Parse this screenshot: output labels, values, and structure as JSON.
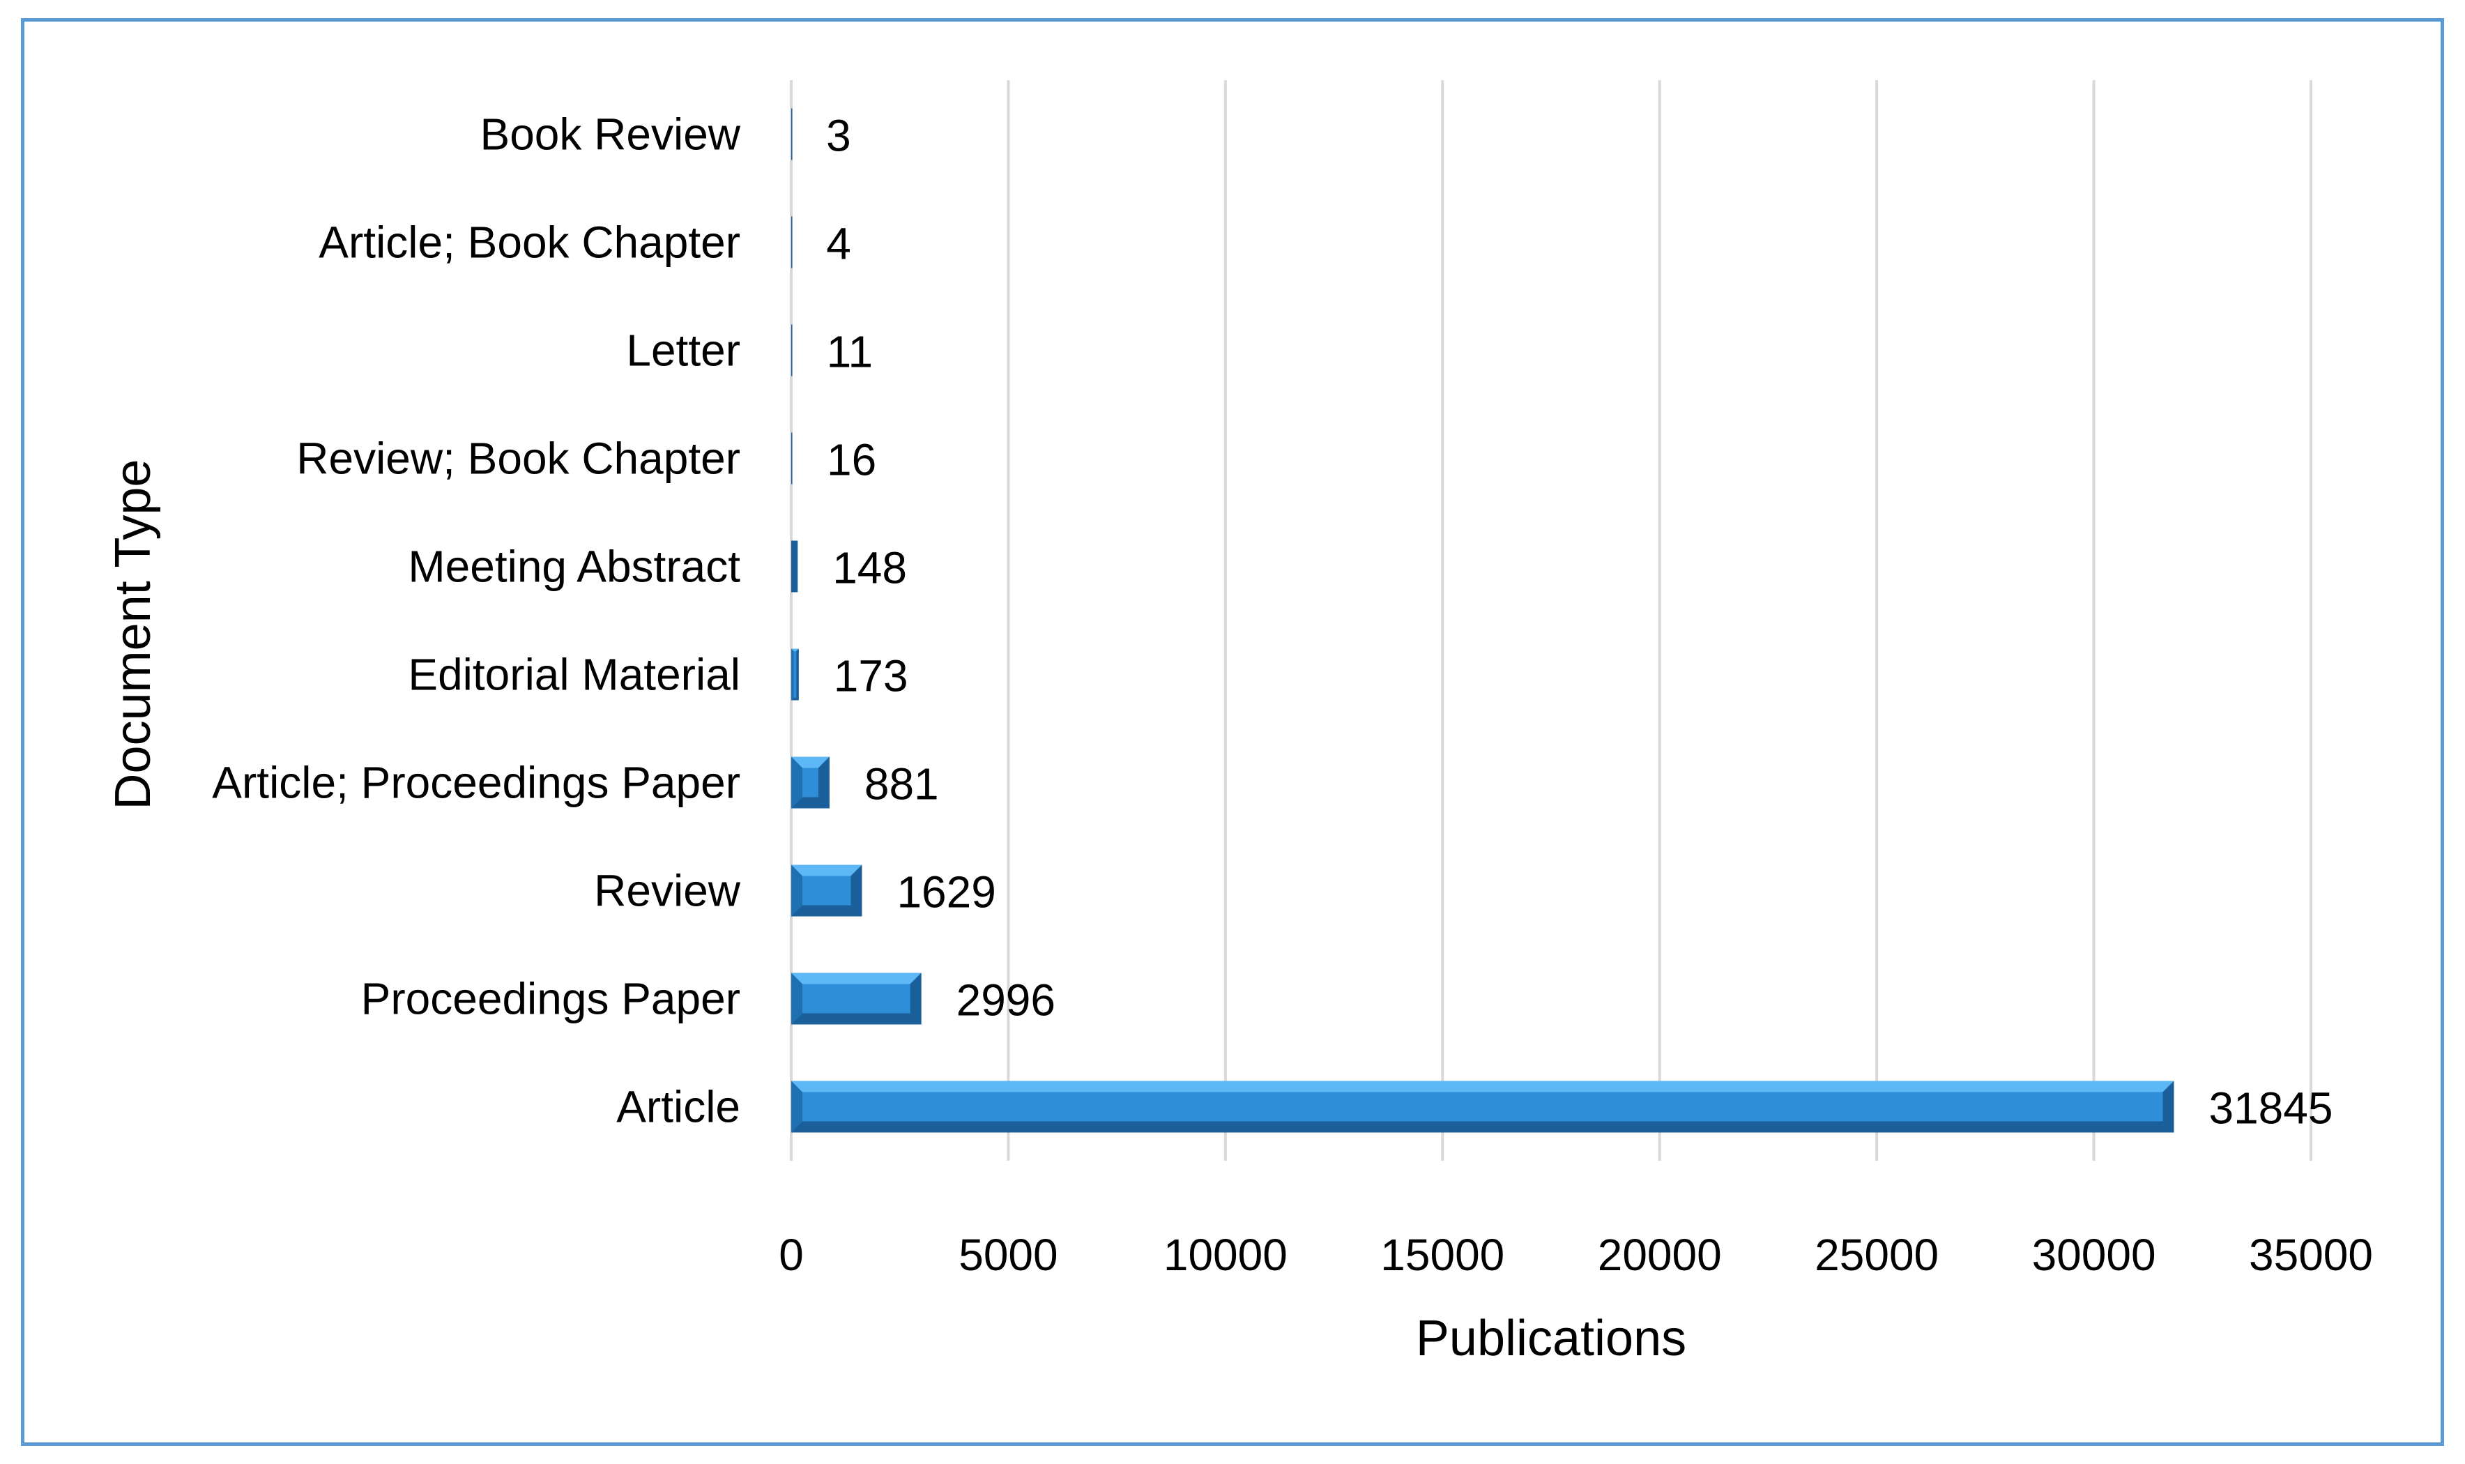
{
  "chart_data": {
    "type": "bar",
    "orientation": "horizontal",
    "title": "",
    "xlabel": "Publications",
    "ylabel": "Document Type",
    "xlim": [
      0,
      35000
    ],
    "xticks": [
      0,
      5000,
      10000,
      15000,
      20000,
      25000,
      30000,
      35000
    ],
    "grid": "vertical",
    "legend": "none",
    "categories": [
      "Book Review",
      "Article; Book Chapter",
      "Letter",
      "Review; Book Chapter",
      "Meeting Abstract",
      "Editorial Material",
      "Article; Proceedings Paper",
      "Review",
      "Proceedings Paper",
      "Article"
    ],
    "values": [
      3,
      4,
      11,
      16,
      148,
      173,
      881,
      1629,
      2996,
      31845
    ],
    "bar_color": "#2e8fd8",
    "bar_dark_color": "#1a5f99",
    "bar_light_color": "#5db8f5",
    "grid_color": "#d9d9d9",
    "frame_color": "#5b9bd5"
  }
}
